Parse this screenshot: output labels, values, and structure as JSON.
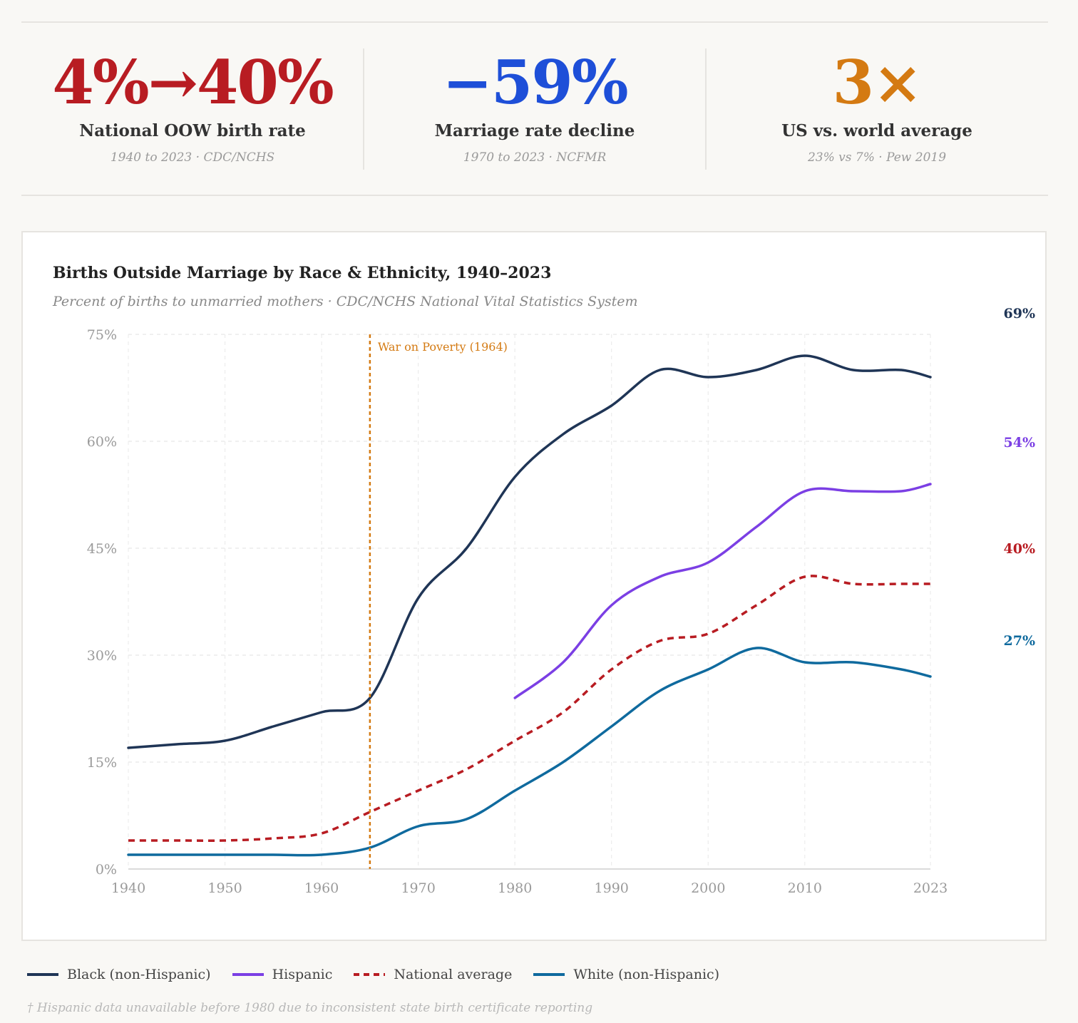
{
  "stats": [
    {
      "value": "4%→40%",
      "label": "National OOW birth rate",
      "source": "1940 to 2023 · CDC/NCHS",
      "color": "#b81c22"
    },
    {
      "value": "−59%",
      "label": "Marriage rate decline",
      "source": "1970 to 2023 · NCFMR",
      "color": "#1e4fd8"
    },
    {
      "value": "3×",
      "label": "US vs. world average",
      "source": "23% vs 7% · Pew 2019",
      "color": "#d47a12"
    }
  ],
  "chart_data": {
    "type": "line",
    "title": "Births Outside Marriage by Race & Ethnicity, 1940–2023",
    "subtitle": "Percent of births to unmarried mothers · CDC/NCHS National Vital Statistics System",
    "xlim": [
      1940,
      2023
    ],
    "ylim": [
      0,
      75
    ],
    "x_ticks": [
      1940,
      1950,
      1960,
      1970,
      1980,
      1990,
      2000,
      2010,
      2023
    ],
    "y_ticks": [
      0,
      15,
      30,
      45,
      60,
      75
    ],
    "y_tick_labels": [
      "0%",
      "15%",
      "30%",
      "45%",
      "60%",
      "75%"
    ],
    "grid": true,
    "annotation": {
      "x": 1965,
      "label": "War on Poverty (1964)",
      "color": "#d47a12"
    },
    "series": [
      {
        "name": "Black (non-Hispanic)",
        "color": "#1f3556",
        "dashed": false,
        "end_label": "69%",
        "x": [
          1940,
          1945,
          1950,
          1955,
          1960,
          1965,
          1970,
          1975,
          1980,
          1985,
          1990,
          1995,
          2000,
          2005,
          2010,
          2015,
          2020,
          2023
        ],
        "y": [
          17,
          17.5,
          18,
          20,
          22,
          24,
          38,
          45,
          55,
          61,
          65,
          70,
          69,
          70,
          72,
          70,
          70,
          69
        ]
      },
      {
        "name": "Hispanic",
        "color": "#7b3fe4",
        "dashed": false,
        "end_label": "54%",
        "x": [
          1980,
          1985,
          1990,
          1995,
          2000,
          2005,
          2010,
          2015,
          2020,
          2023
        ],
        "y": [
          24,
          29,
          37,
          41,
          43,
          48,
          53,
          53,
          53,
          54
        ]
      },
      {
        "name": "National average",
        "color": "#b81c22",
        "dashed": true,
        "end_label": "40%",
        "x": [
          1940,
          1945,
          1950,
          1955,
          1960,
          1965,
          1970,
          1975,
          1980,
          1985,
          1990,
          1995,
          2000,
          2005,
          2010,
          2015,
          2020,
          2023
        ],
        "y": [
          4,
          4,
          4,
          4.3,
          5,
          8,
          11,
          14,
          18,
          22,
          28,
          32,
          33,
          37,
          41,
          40,
          40,
          40
        ]
      },
      {
        "name": "White (non-Hispanic)",
        "color": "#0f6a9e",
        "dashed": false,
        "end_label": "27%",
        "x": [
          1940,
          1945,
          1950,
          1955,
          1960,
          1965,
          1970,
          1975,
          1980,
          1985,
          1990,
          1995,
          2000,
          2005,
          2010,
          2015,
          2020,
          2023
        ],
        "y": [
          2,
          2,
          2,
          2,
          2,
          3,
          6,
          7,
          11,
          15,
          20,
          25,
          28,
          31,
          29,
          29,
          28,
          27
        ]
      }
    ]
  },
  "footnote": "† Hispanic data unavailable before 1980 due to inconsistent state birth certificate reporting"
}
